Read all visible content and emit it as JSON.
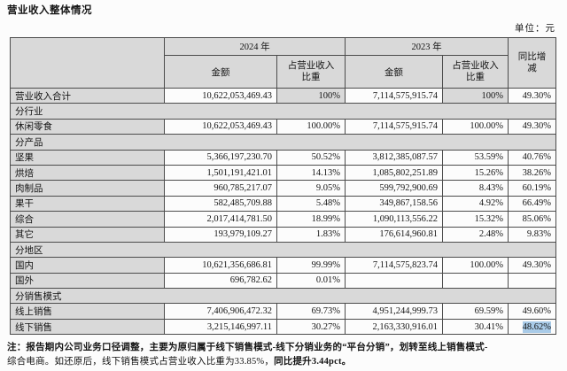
{
  "page": {
    "title": "营业收入整体情况",
    "unit_label": "单位：元"
  },
  "table": {
    "headers": {
      "year_2024": "2024 年",
      "year_2023": "2023 年",
      "yoy": "同比增减",
      "amount": "金额",
      "pct_of_revenue": "占营业收入比重"
    },
    "rows": [
      {
        "type": "total",
        "label": "营业收入合计",
        "a24": "10,622,053,469.43",
        "p24": "100%",
        "a23": "7,114,575,915.74",
        "p23": "100%",
        "yoy": "49.30%"
      },
      {
        "type": "section",
        "label": "分行业"
      },
      {
        "type": "data",
        "label": "休闲零食",
        "a24": "10,622,053,469.43",
        "p24": "100.00%",
        "a23": "7,114,575,915.74",
        "p23": "100.00%",
        "yoy": "49.30%"
      },
      {
        "type": "section",
        "label": "分产品"
      },
      {
        "type": "data",
        "label": "坚果",
        "a24": "5,366,197,230.70",
        "p24": "50.52%",
        "a23": "3,812,385,087.57",
        "p23": "53.59%",
        "yoy": "40.76%"
      },
      {
        "type": "data",
        "label": "烘焙",
        "a24": "1,501,191,421.01",
        "p24": "14.13%",
        "a23": "1,085,802,251.89",
        "p23": "15.26%",
        "yoy": "38.26%"
      },
      {
        "type": "data",
        "label": "肉制品",
        "a24": "960,785,217.07",
        "p24": "9.05%",
        "a23": "599,792,900.69",
        "p23": "8.43%",
        "yoy": "60.19%"
      },
      {
        "type": "data",
        "label": "果干",
        "a24": "582,485,709.88",
        "p24": "5.48%",
        "a23": "349,867,158.56",
        "p23": "4.92%",
        "yoy": "66.49%"
      },
      {
        "type": "data",
        "label": "综合",
        "a24": "2,017,414,781.50",
        "p24": "18.99%",
        "a23": "1,090,113,556.22",
        "p23": "15.32%",
        "yoy": "85.06%"
      },
      {
        "type": "data",
        "label": "其它",
        "a24": "193,979,109.27",
        "p24": "1.83%",
        "a23": "176,614,960.81",
        "p23": "2.48%",
        "yoy": "9.83%"
      },
      {
        "type": "section",
        "label": "分地区"
      },
      {
        "type": "data",
        "label": "国内",
        "a24": "10,621,356,686.81",
        "p24": "99.99%",
        "a23": "7,114,575,823.74",
        "p23": "100.00%",
        "yoy": "49.30%"
      },
      {
        "type": "data",
        "label": "国外",
        "a24": "696,782.62",
        "p24": "0.01%",
        "a23": "",
        "p23": "",
        "yoy": ""
      },
      {
        "type": "section",
        "label": "分销售模式"
      },
      {
        "type": "data",
        "label": "线上销售",
        "a24": "7,406,906,472.32",
        "p24": "69.73%",
        "a23": "4,951,244,999.73",
        "p23": "69.59%",
        "yoy": "49.60%"
      },
      {
        "type": "data",
        "label": "线下销售",
        "a24": "3,215,146,997.11",
        "p24": "30.27%",
        "a23": "2,163,330,916.01",
        "p23": "30.41%",
        "yoy": "48.62%",
        "yoy_highlight": true
      }
    ]
  },
  "note": {
    "seg1_bold": "注：报告期内公司业务口径调整，主要为原归属于线下销售模式-线下分销业务的“平台分销”，划转至线上销售模式-",
    "seg2_regular": "综合电商。如还原后，线下销售模式占营业收入比重为33.85%，",
    "seg3_bold": "同比提升3.44pct。"
  },
  "colors": {
    "cell_gray": "#d9d9d9",
    "border": "#4c4c4c",
    "selection_highlight": "#a9cbe8",
    "background": "#fcfcfc"
  }
}
